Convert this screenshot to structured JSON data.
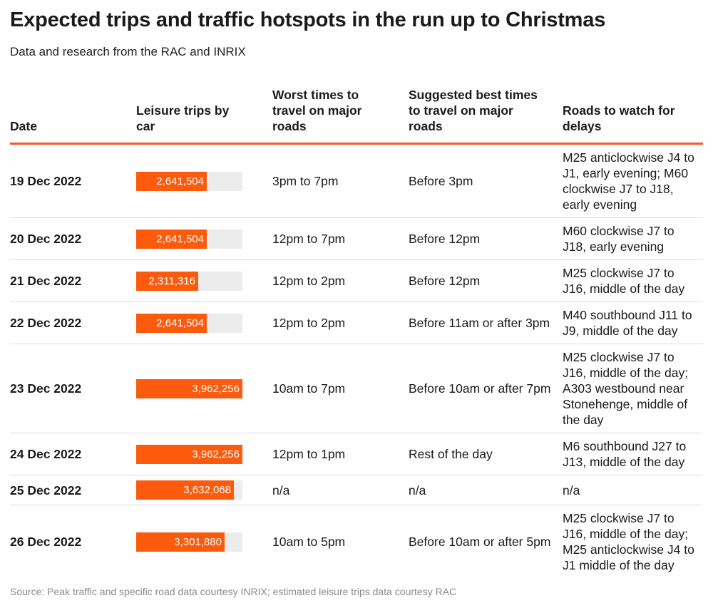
{
  "chart_data": {
    "type": "table",
    "title": "Expected trips and traffic hotspots in the run up to Christmas",
    "subtitle": "Data and research from the RAC and INRIX",
    "source": "Source: Peak traffic and specific road data courtesy INRIX; estimated leisure trips data courtesy RAC",
    "columns": [
      "Date",
      "Leisure trips by car",
      "Worst times to travel on major roads",
      "Suggested best times to travel on major roads",
      "Roads to watch for delays"
    ],
    "bar_max": 3962256,
    "colors": {
      "bar": "#fc5a0d",
      "track": "#ececec",
      "header_rule": "#f25a1e"
    },
    "rows": [
      {
        "date": "19 Dec 2022",
        "trips": 2641504,
        "trips_label": "2,641,504",
        "worst": "3pm to 7pm",
        "best": "Before 3pm",
        "roads": "M25 anticlockwise J4 to J1, early evening; M60 clockwise J7 to J18, early evening"
      },
      {
        "date": "20 Dec 2022",
        "trips": 2641504,
        "trips_label": "2,641,504",
        "worst": "12pm to 7pm",
        "best": "Before 12pm",
        "roads": "M60 clockwise J7 to J18, early evening"
      },
      {
        "date": "21 Dec 2022",
        "trips": 2311316,
        "trips_label": "2,311,316",
        "worst": "12pm to 2pm",
        "best": "Before 12pm",
        "roads": "M25 clockwise J7 to J16, middle of the day"
      },
      {
        "date": "22 Dec 2022",
        "trips": 2641504,
        "trips_label": "2,641,504",
        "worst": "12pm to 2pm",
        "best": "Before 11am or after 3pm",
        "roads": "M40 southbound J11 to J9, middle of the day"
      },
      {
        "date": "23 Dec 2022",
        "trips": 3962256,
        "trips_label": "3,962,256",
        "worst": "10am to 7pm",
        "best": "Before 10am or after 7pm",
        "roads": "M25 clockwise J7 to J16, middle of the day; A303 westbound near Stonehenge, middle of the day"
      },
      {
        "date": "24 Dec 2022",
        "trips": 3962256,
        "trips_label": "3,962,256",
        "worst": "12pm to 1pm",
        "best": "Rest of the day",
        "roads": "M6 southbound J27 to J13, middle of the day"
      },
      {
        "date": "25 Dec 2022",
        "trips": 3632068,
        "trips_label": "3,632,068",
        "worst": "n/a",
        "best": "n/a",
        "roads": "n/a"
      },
      {
        "date": "26 Dec 2022",
        "trips": 3301880,
        "trips_label": "3,301,880",
        "worst": "10am to 5pm",
        "best": "Before 10am or after 5pm",
        "roads": "M25 clockwise J7 to J16, middle of the day; M25 anticlockwise J4 to J1 middle of the day"
      }
    ]
  }
}
